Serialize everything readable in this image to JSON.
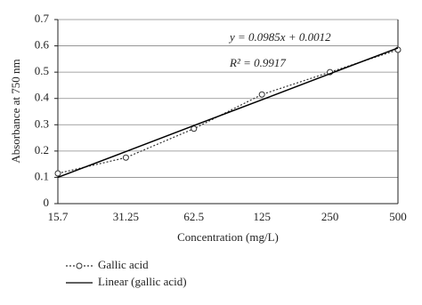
{
  "chart_data": {
    "type": "line",
    "xlabel": "Concentration (mg/L)",
    "ylabel": "Absorbance at 750 nm",
    "categories": [
      "15.7",
      "31.25",
      "62.5",
      "125",
      "250",
      "500"
    ],
    "series": [
      {
        "name": "Gallic acid",
        "color": "#333333",
        "dash": "dotted",
        "marker": "circle",
        "values": [
          0.115,
          0.175,
          0.285,
          0.415,
          0.5,
          0.585
        ]
      },
      {
        "name": "Linear (gallic acid)",
        "color": "#000000",
        "dash": "solid",
        "values": [
          0.1,
          0.198,
          0.297,
          0.395,
          0.494,
          0.592
        ]
      }
    ],
    "annotations": [
      "y = 0.0985x + 0.0012",
      "R² = 0.9917"
    ],
    "ylim": [
      0,
      0.7
    ],
    "yticks": [
      0,
      0.1,
      0.2,
      0.3,
      0.4,
      0.5,
      0.6,
      0.7
    ],
    "grid": true,
    "legend": "bottom-left"
  }
}
